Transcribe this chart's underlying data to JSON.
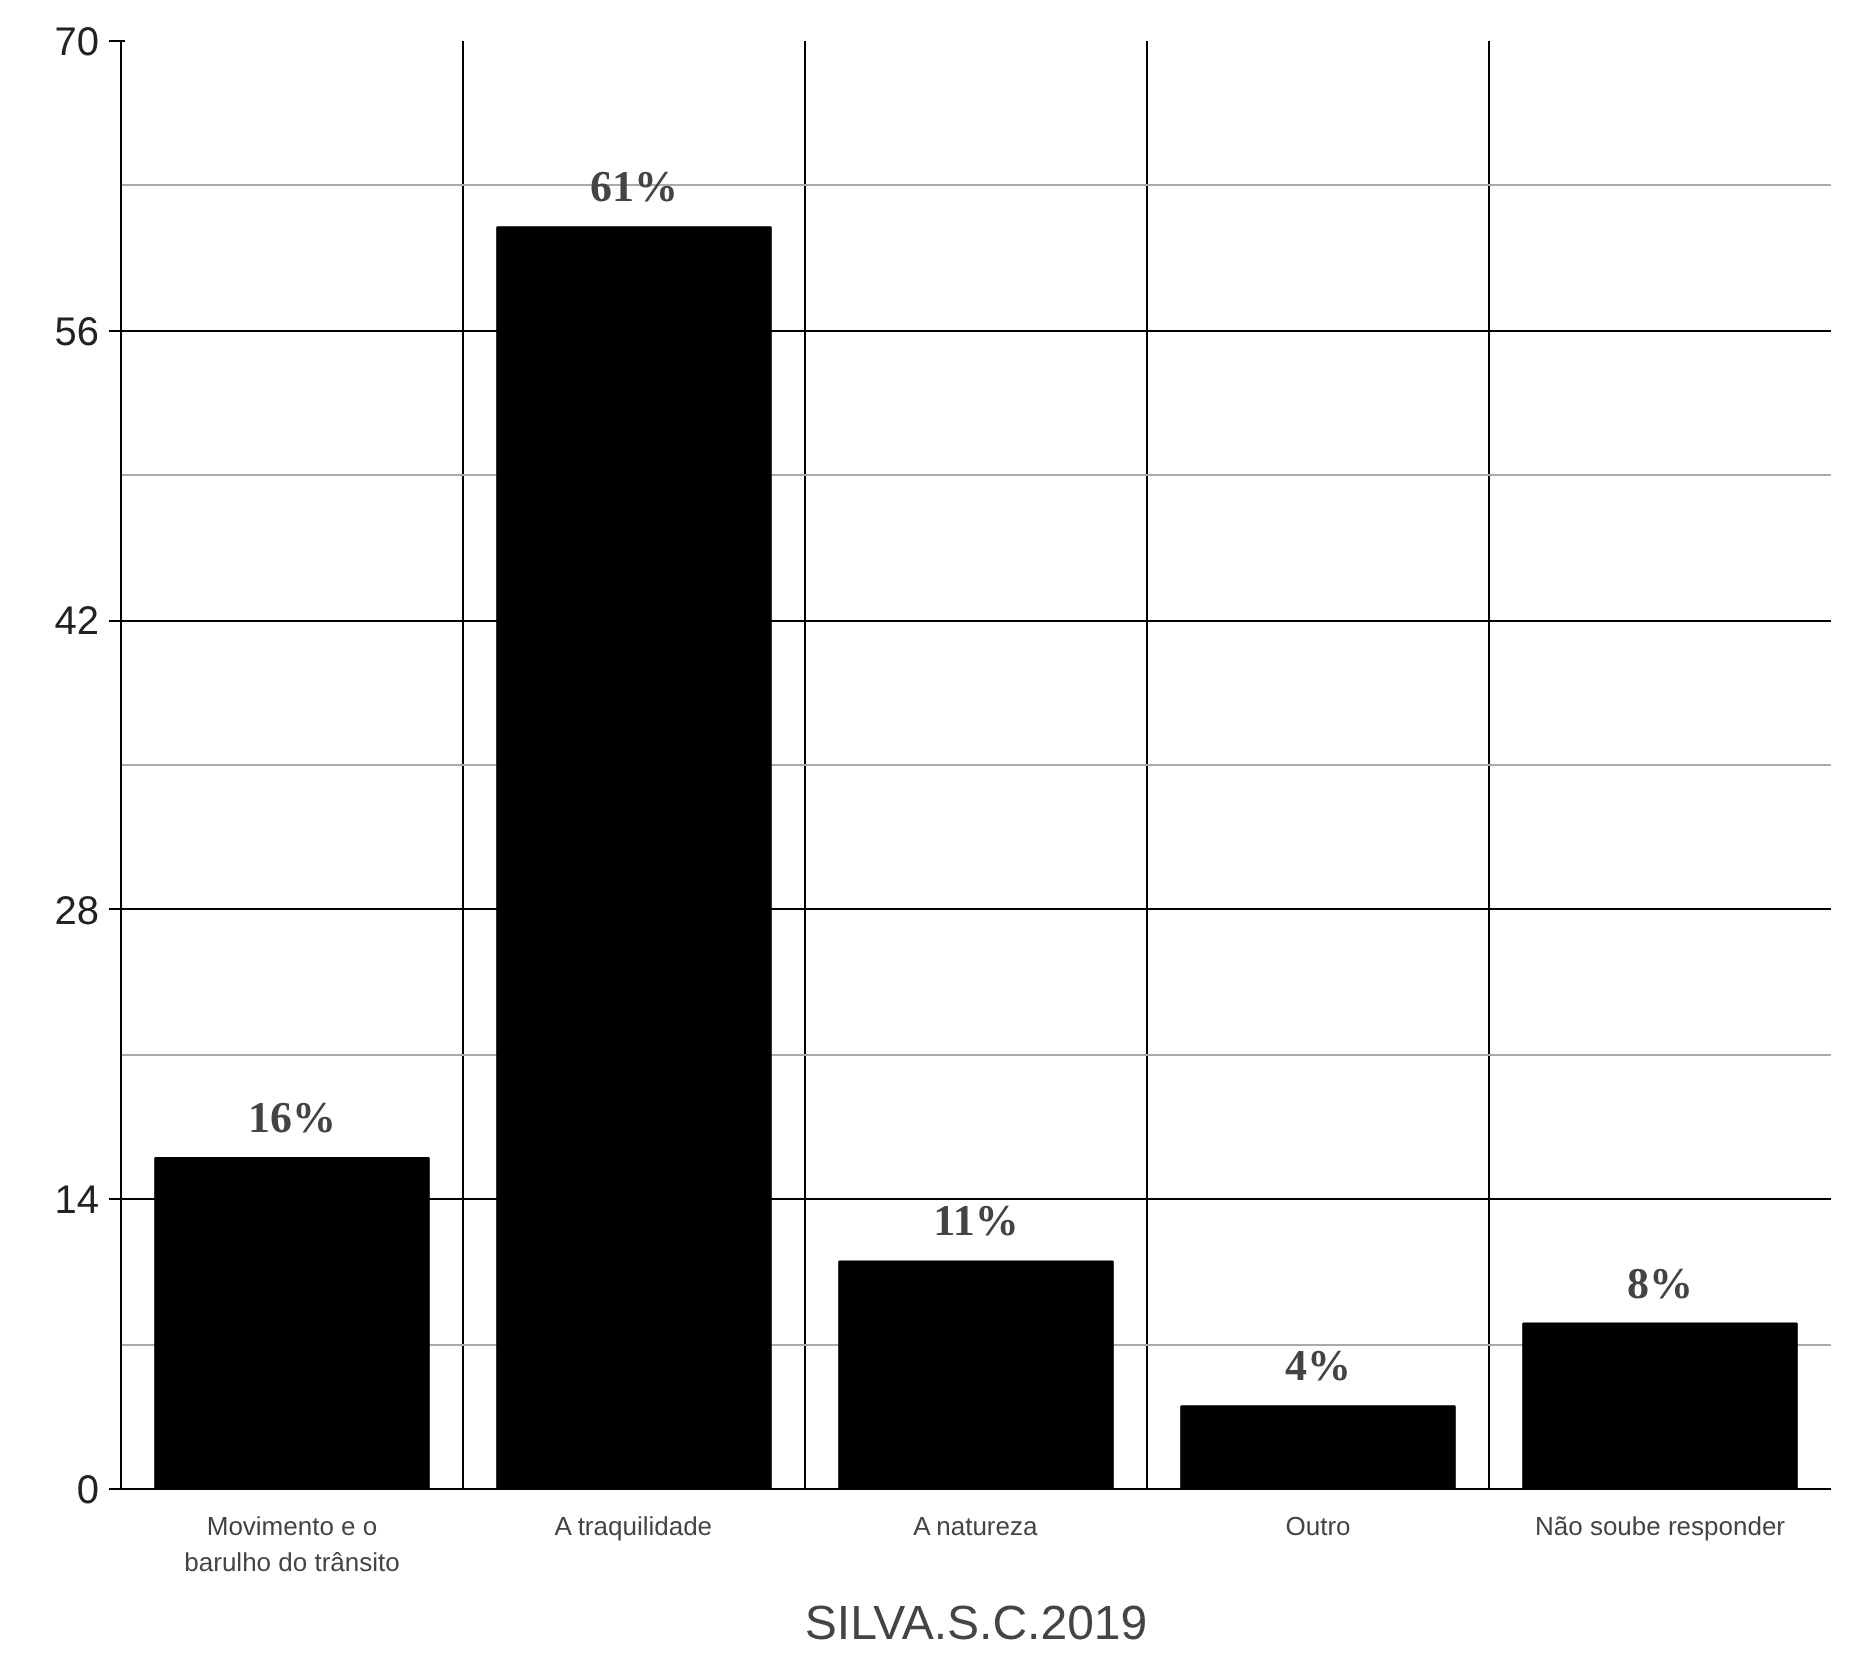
{
  "chart_data": {
    "type": "bar",
    "categories": [
      "Movimento e o barulho do trânsito",
      "A traquilidade",
      "A natureza",
      "Outro",
      "Não soube responder"
    ],
    "values": [
      16,
      61,
      11,
      4,
      8
    ],
    "value_labels": [
      "16%",
      "61%",
      "11%",
      "4%",
      "8%"
    ],
    "color": "#000000",
    "ylim": [
      0,
      70
    ],
    "yticks": [
      0,
      14,
      28,
      42,
      56,
      70
    ],
    "grid": true,
    "annotations": [
      "SILVA.S.C.2019"
    ]
  }
}
